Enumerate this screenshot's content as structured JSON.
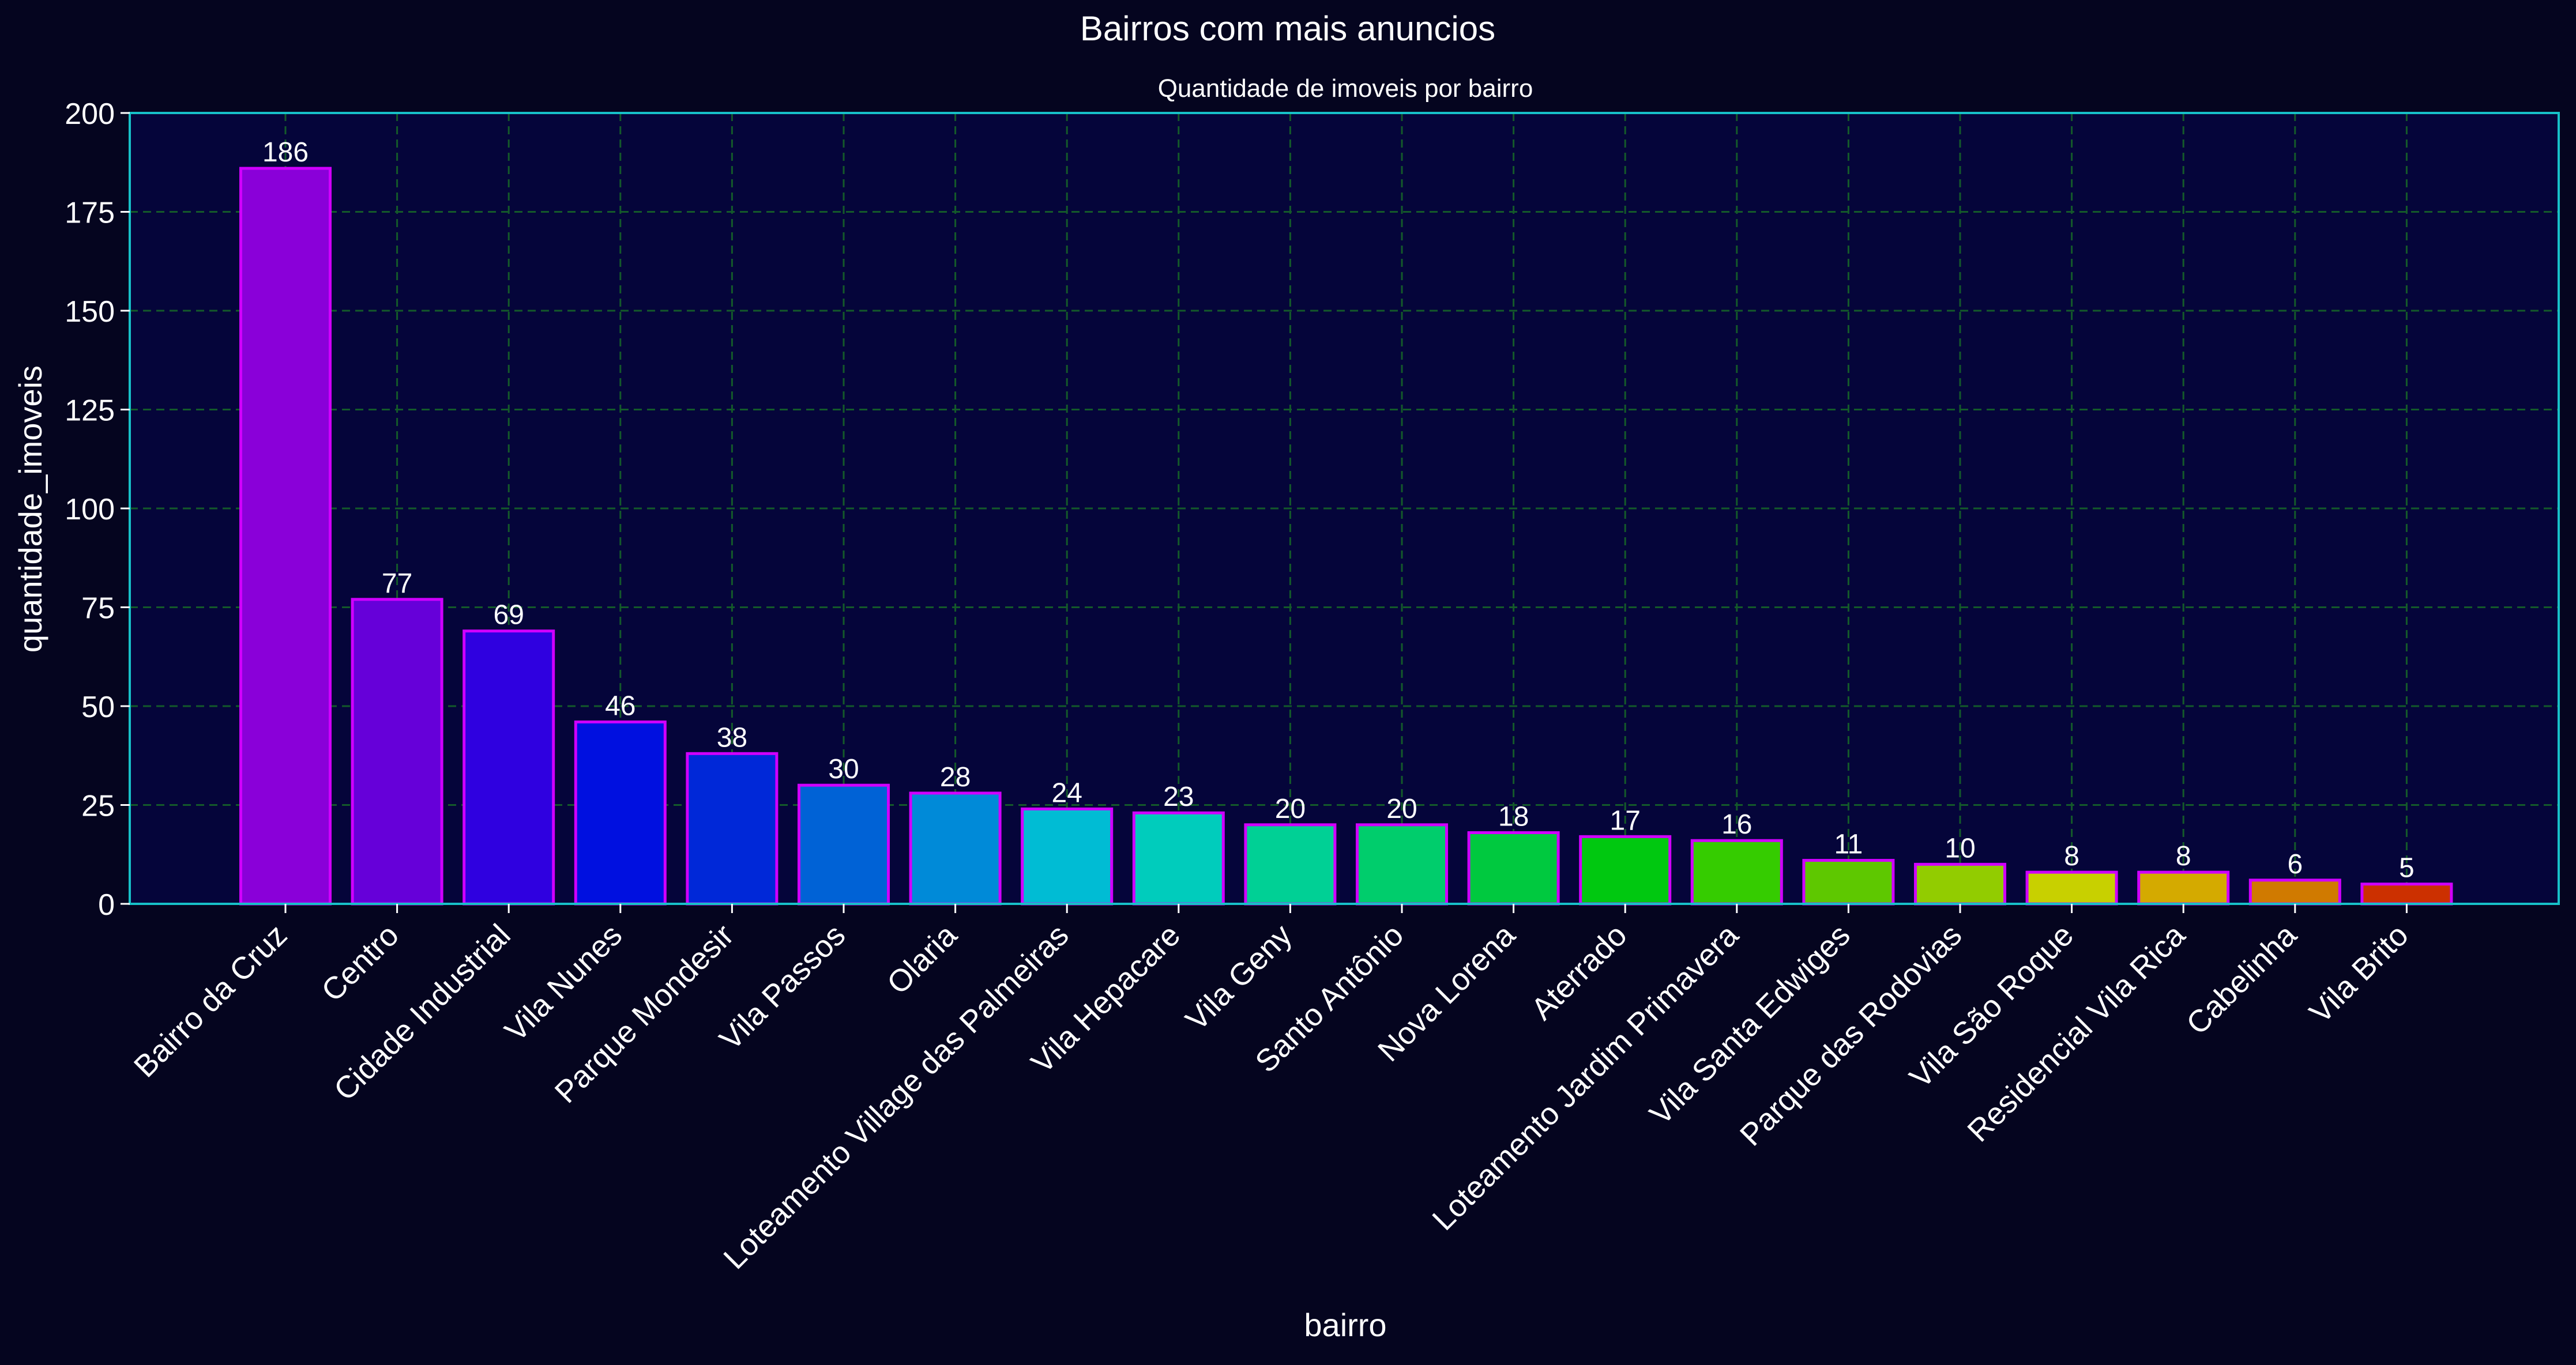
{
  "chart_data": {
    "type": "bar",
    "title": "Bairros com mais anuncios",
    "subtitle": "Quantidade de imoveis por bairro",
    "xlabel": "bairro",
    "ylabel": "quantidade_imoveis",
    "ylim": [
      0,
      200
    ],
    "yticks": [
      0,
      25,
      50,
      75,
      100,
      125,
      150,
      175,
      200
    ],
    "grid": true,
    "categories": [
      "Bairro da Cruz",
      "Centro",
      "Cidade Industrial",
      "Vila Nunes",
      "Parque Mondesir",
      "Vila Passos",
      "Olaria",
      "Loteamento Village das Palmeiras",
      "Vila Hepacare",
      "Vila Geny",
      "Santo Antônio",
      "Nova Lorena",
      "Aterrado",
      "Loteamento Jardim Primavera",
      "Vila Santa Edwiges",
      "Parque das Rodovias",
      "Vila São Roque",
      "Residencial Vila Rica",
      "Cabelinha",
      "Vila Brito"
    ],
    "values": [
      186,
      77,
      69,
      46,
      38,
      30,
      28,
      24,
      23,
      20,
      20,
      18,
      17,
      16,
      11,
      10,
      8,
      8,
      6,
      5
    ],
    "bar_colors": [
      "#8a00d9",
      "#6600d9",
      "#2f00e0",
      "#0010e0",
      "#0028d8",
      "#0062d6",
      "#008ad8",
      "#00bcd4",
      "#00ccbc",
      "#00d095",
      "#00cd6c",
      "#00c93f",
      "#00c810",
      "#35cc00",
      "#5ec800",
      "#92cc00",
      "#c8d000",
      "#d4aa00",
      "#d07a00",
      "#cc3000"
    ],
    "colors": {
      "background": "#05051f",
      "axes_background": "#05053a",
      "axes_border": "#17c1c8",
      "bar_edge": "#d000ff",
      "grid": "#145a2a",
      "text": "#ffffff"
    }
  }
}
